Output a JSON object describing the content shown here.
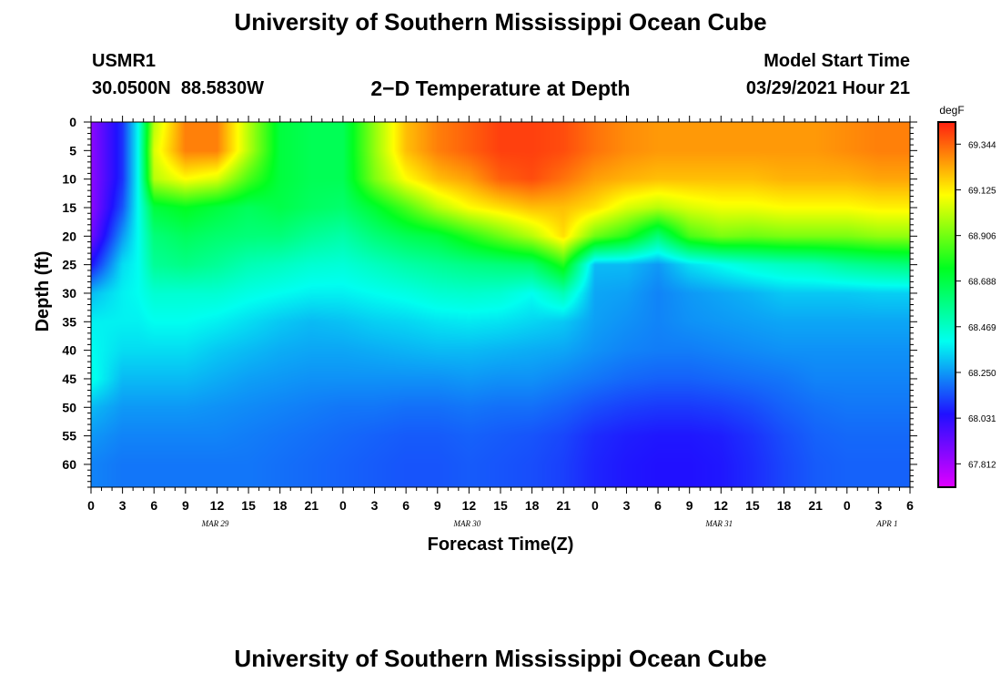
{
  "header": {
    "title_top": "University of Southern Mississippi Ocean Cube",
    "title_bottom": "University of Southern Mississippi Ocean Cube",
    "station_id": "USMR1",
    "coordinates": "30.0500N  88.5830W",
    "model_start_label": "Model Start Time",
    "model_start_value": "03/29/2021 Hour 21"
  },
  "chart_data": {
    "type": "heatmap",
    "title": "2−D Temperature at Depth",
    "xlabel": "Forecast Time(Z)",
    "ylabel": "Depth (ft)",
    "units": "degF",
    "x_tick_labels": [
      "0",
      "3",
      "6",
      "9",
      "12",
      "15",
      "18",
      "21",
      "0",
      "3",
      "6",
      "9",
      "12",
      "15",
      "18",
      "21",
      "0",
      "3",
      "6",
      "9",
      "12",
      "15",
      "18",
      "21",
      "0",
      "3",
      "6"
    ],
    "x_range_hours": [
      0,
      78
    ],
    "x_date_labels": [
      {
        "label": "MAR 29",
        "hour": 12
      },
      {
        "label": "MAR 30",
        "hour": 36
      },
      {
        "label": "MAR 31",
        "hour": 60
      },
      {
        "label": "APR 1",
        "hour": 76
      }
    ],
    "y_tick_labels": [
      "0",
      "5",
      "10",
      "15",
      "20",
      "25",
      "30",
      "35",
      "40",
      "45",
      "50",
      "55",
      "60"
    ],
    "y_range_ft": [
      0,
      64
    ],
    "colorbar_labels": [
      "69.344",
      "69.125",
      "68.906",
      "68.688",
      "68.469",
      "68.250",
      "68.031",
      "67.812"
    ],
    "colorbar_range": [
      67.7,
      69.45
    ],
    "colors": {
      "scale": [
        "#e000ff",
        "#2010ff",
        "#00fff0",
        "#00ff20",
        "#ffff00",
        "#ff2010"
      ]
    },
    "depth_grid_ft": [
      0,
      5,
      10,
      15,
      20,
      25,
      30,
      35,
      40,
      45,
      50,
      55,
      60,
      64
    ],
    "time_grid_hours": [
      0,
      3,
      4.5,
      6,
      9,
      12,
      15,
      18,
      21,
      24,
      27,
      30,
      33,
      36,
      39,
      42,
      45,
      48,
      51,
      54,
      57,
      60,
      63,
      66,
      69,
      72,
      75,
      78
    ],
    "temperature_degF": [
      [
        67.85,
        67.85,
        67.85,
        67.85,
        67.9,
        68.05,
        68.3,
        68.38,
        68.4,
        68.42,
        68.3,
        68.25,
        68.22,
        68.22
      ],
      [
        68.1,
        68.1,
        68.1,
        68.15,
        68.25,
        68.35,
        68.38,
        68.38,
        68.35,
        68.3,
        68.25,
        68.22,
        68.2,
        68.2
      ],
      [
        68.4,
        68.4,
        68.4,
        68.4,
        68.4,
        68.4,
        68.4,
        68.38,
        68.35,
        68.3,
        68.25,
        68.22,
        68.2,
        68.2
      ],
      [
        69.0,
        69.05,
        69.0,
        68.7,
        68.6,
        68.55,
        68.45,
        68.4,
        68.35,
        68.3,
        68.25,
        68.22,
        68.2,
        68.2
      ],
      [
        69.3,
        69.3,
        69.1,
        68.75,
        68.65,
        68.58,
        68.45,
        68.4,
        68.35,
        68.3,
        68.25,
        68.22,
        68.2,
        68.2
      ],
      [
        69.3,
        69.3,
        69.05,
        68.7,
        68.62,
        68.55,
        68.45,
        68.38,
        68.32,
        68.28,
        68.24,
        68.22,
        68.2,
        68.2
      ],
      [
        69.0,
        69.0,
        68.85,
        68.65,
        68.6,
        68.5,
        68.42,
        68.35,
        68.3,
        68.26,
        68.23,
        68.21,
        68.2,
        68.2
      ],
      [
        68.7,
        68.7,
        68.7,
        68.68,
        68.6,
        68.48,
        68.4,
        68.32,
        68.28,
        68.25,
        68.22,
        68.2,
        68.19,
        68.19
      ],
      [
        68.66,
        68.66,
        68.66,
        68.64,
        68.55,
        68.45,
        68.38,
        68.3,
        68.27,
        68.24,
        68.21,
        68.19,
        68.18,
        68.18
      ],
      [
        68.66,
        68.66,
        68.66,
        68.62,
        68.52,
        68.44,
        68.38,
        68.31,
        68.27,
        68.24,
        68.2,
        68.18,
        68.17,
        68.17
      ],
      [
        68.95,
        68.95,
        68.92,
        68.72,
        68.6,
        68.48,
        68.4,
        68.33,
        68.28,
        68.24,
        68.2,
        68.17,
        68.16,
        68.16
      ],
      [
        69.2,
        69.2,
        69.1,
        68.85,
        68.66,
        68.52,
        68.42,
        68.34,
        68.29,
        68.24,
        68.19,
        68.16,
        68.15,
        68.15
      ],
      [
        69.3,
        69.3,
        69.2,
        69.0,
        68.7,
        68.55,
        68.45,
        68.36,
        68.3,
        68.24,
        68.19,
        68.16,
        68.15,
        68.15
      ],
      [
        69.35,
        69.35,
        69.25,
        69.1,
        68.8,
        68.58,
        68.46,
        68.37,
        68.3,
        68.25,
        68.2,
        68.17,
        68.16,
        68.16
      ],
      [
        69.4,
        69.4,
        69.35,
        69.15,
        68.9,
        68.6,
        68.45,
        68.36,
        68.29,
        68.24,
        68.19,
        68.16,
        68.15,
        68.15
      ],
      [
        69.4,
        69.4,
        69.38,
        69.2,
        69.0,
        68.62,
        68.4,
        68.34,
        68.28,
        68.24,
        68.19,
        68.15,
        68.14,
        68.14
      ],
      [
        69.38,
        69.38,
        69.32,
        69.2,
        69.15,
        68.8,
        68.5,
        68.32,
        68.27,
        68.22,
        68.17,
        68.13,
        68.12,
        68.12
      ],
      [
        69.32,
        69.32,
        69.25,
        69.15,
        68.9,
        68.3,
        68.27,
        68.26,
        68.24,
        68.2,
        68.14,
        68.09,
        68.08,
        68.08
      ],
      [
        69.28,
        69.28,
        69.22,
        69.05,
        68.8,
        68.3,
        68.26,
        68.24,
        68.22,
        68.18,
        68.12,
        68.07,
        68.06,
        68.06
      ],
      [
        69.26,
        69.26,
        69.2,
        69.0,
        68.6,
        68.25,
        68.22,
        68.22,
        68.21,
        68.17,
        68.11,
        68.06,
        68.05,
        68.05
      ],
      [
        69.26,
        69.26,
        69.2,
        69.05,
        68.85,
        68.35,
        68.25,
        68.24,
        68.21,
        68.17,
        68.11,
        68.06,
        68.05,
        68.05
      ],
      [
        69.26,
        69.26,
        69.2,
        69.08,
        68.92,
        68.4,
        68.27,
        68.25,
        68.22,
        68.18,
        68.12,
        68.07,
        68.06,
        68.06
      ],
      [
        69.26,
        69.26,
        69.2,
        69.08,
        68.9,
        68.45,
        68.29,
        68.26,
        68.23,
        68.19,
        68.14,
        68.1,
        68.09,
        68.09
      ],
      [
        69.26,
        69.26,
        69.22,
        69.1,
        68.92,
        68.48,
        68.32,
        68.27,
        68.24,
        68.2,
        68.17,
        68.14,
        68.13,
        68.13
      ],
      [
        69.26,
        69.26,
        69.22,
        69.1,
        68.92,
        68.5,
        68.32,
        68.27,
        68.24,
        68.22,
        68.19,
        68.17,
        68.16,
        68.16
      ],
      [
        69.28,
        69.28,
        69.22,
        69.1,
        68.92,
        68.55,
        68.32,
        68.27,
        68.24,
        68.22,
        68.2,
        68.18,
        68.17,
        68.17
      ],
      [
        69.3,
        69.3,
        69.24,
        69.12,
        68.95,
        68.58,
        68.33,
        68.27,
        68.24,
        68.22,
        68.2,
        68.18,
        68.17,
        68.17
      ],
      [
        69.3,
        69.3,
        69.24,
        69.12,
        68.95,
        68.6,
        68.33,
        68.27,
        68.24,
        68.22,
        68.2,
        68.18,
        68.17,
        68.17
      ]
    ]
  }
}
